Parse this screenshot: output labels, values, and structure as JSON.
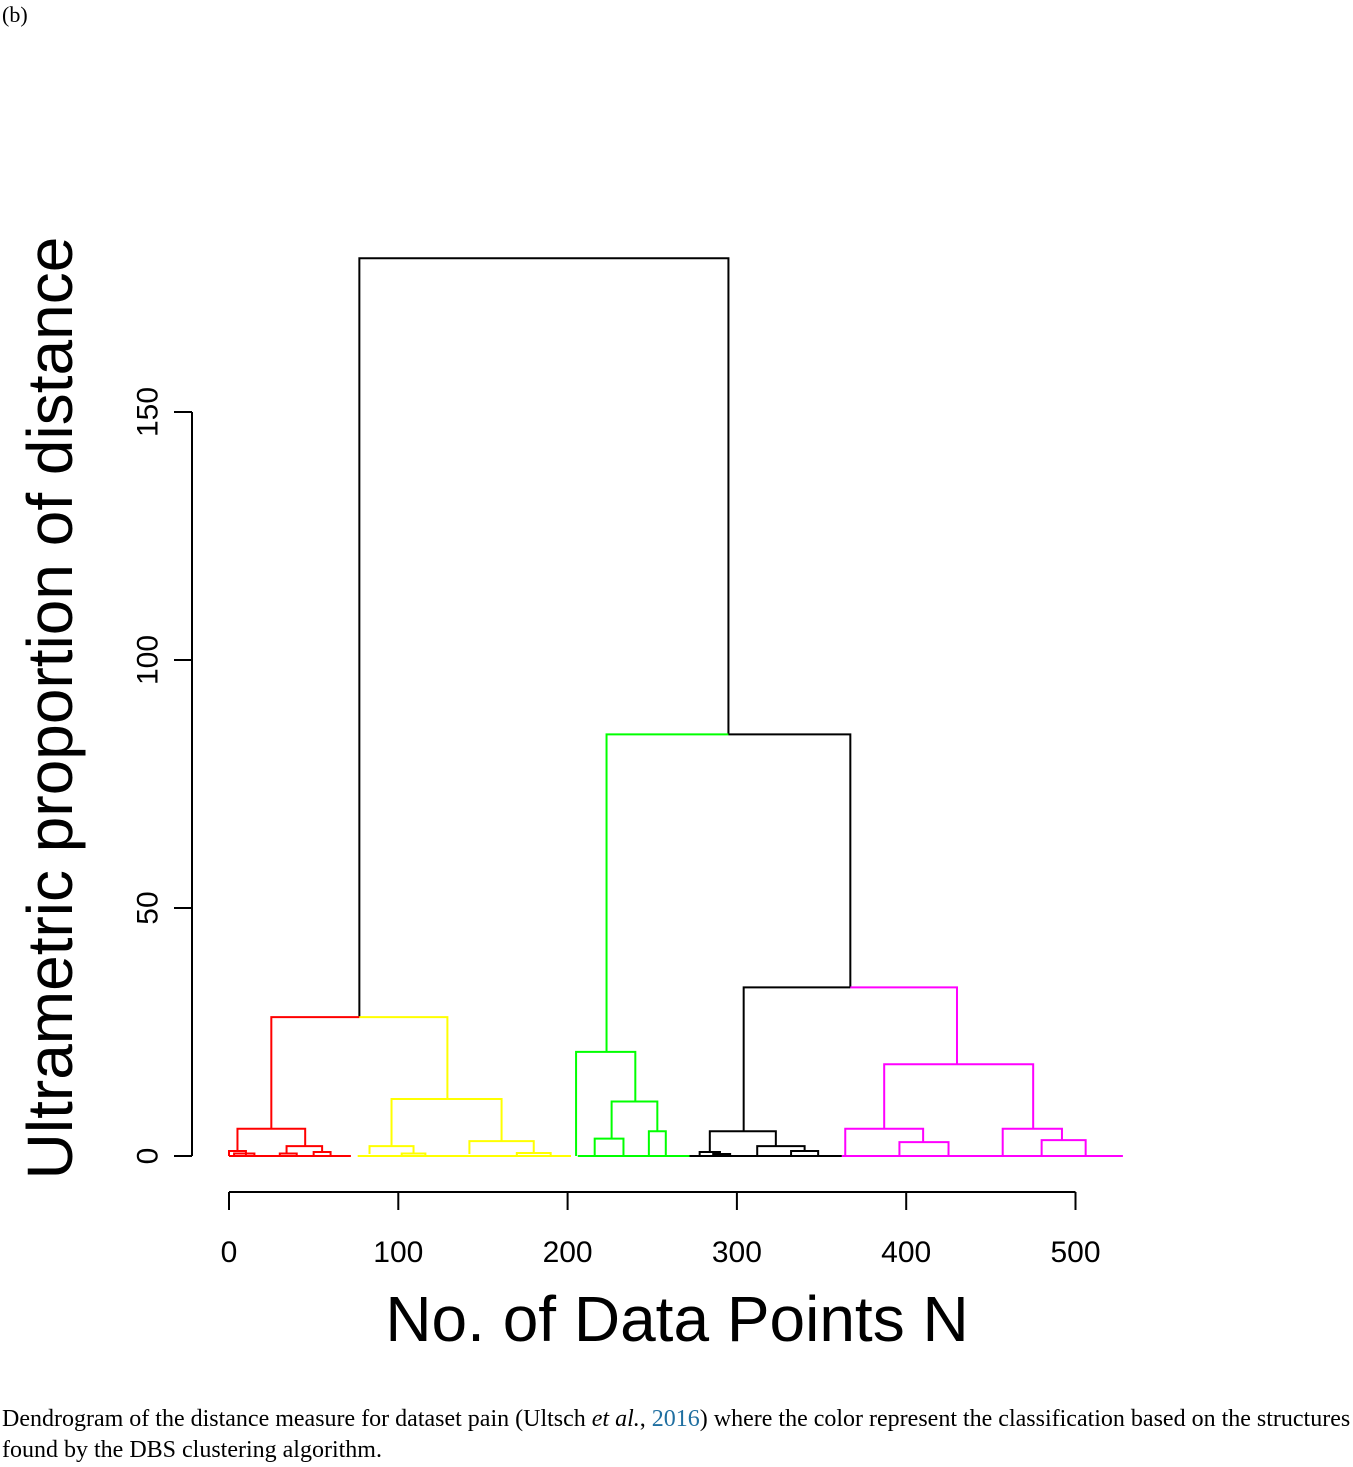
{
  "panel_label": "(b)",
  "chart_data": {
    "type": "dendrogram",
    "xlabel": "No. of Data Points N",
    "ylabel": "Ultrametric proportion of distance",
    "xlim": [
      0,
      530
    ],
    "ylim": [
      0,
      185
    ],
    "x_ticks": [
      0,
      100,
      200,
      300,
      400,
      500
    ],
    "y_ticks": [
      0,
      50,
      100,
      150
    ],
    "cluster_colors": {
      "red": "#ff0000",
      "yellow": "#ffff00",
      "green": "#00ff00",
      "black": "#000000",
      "magenta": "#ff00ff"
    },
    "segments": [
      {
        "color": "#000000",
        "x0": 77,
        "x1": 295,
        "y": 181,
        "yl": 28,
        "yr": 85
      },
      {
        "color": "#00ff00",
        "x0": 223,
        "x1": 295,
        "y": 85,
        "yl": 21,
        "yr": 85
      },
      {
        "color": "#000000",
        "x0": 295,
        "x1": 367,
        "y": 85,
        "yl": 85,
        "yr": 34
      },
      {
        "color": "#000000",
        "x0": 304,
        "x1": 367,
        "y": 34,
        "yl": 5,
        "yr": 34
      },
      {
        "color": "#ff00ff",
        "x0": 367,
        "x1": 430,
        "y": 34,
        "yl": 34,
        "yr": 18.5
      },
      {
        "color": "#ff0000",
        "x0": 25,
        "x1": 77,
        "y": 28,
        "yl": 5.5,
        "yr": 28
      },
      {
        "color": "#ffff00",
        "x0": 77,
        "x1": 129,
        "y": 28,
        "yl": 28,
        "yr": 11.5
      },
      {
        "color": "#ffff00",
        "x0": 96,
        "x1": 161,
        "y": 11.5,
        "yl": 2,
        "yr": 3
      },
      {
        "color": "#ff0000",
        "x0": 5,
        "x1": 45,
        "y": 5.5,
        "yl": 1,
        "yr": 2
      },
      {
        "color": "#ff0000",
        "x0": 34,
        "x1": 55,
        "y": 2,
        "yl": 0.5,
        "yr": 0.8
      },
      {
        "color": "#ff0000",
        "x0": 0,
        "x1": 10,
        "y": 1,
        "yl": 0,
        "yr": 0
      },
      {
        "color": "#ff0000",
        "x0": 3,
        "x1": 15,
        "y": 0.5,
        "yl": 0,
        "yr": 0
      },
      {
        "color": "#ff0000",
        "x0": 30,
        "x1": 40,
        "y": 0.5,
        "yl": 0,
        "yr": 0
      },
      {
        "color": "#ff0000",
        "x0": 50,
        "x1": 60,
        "y": 0.8,
        "yl": 0,
        "yr": 0
      },
      {
        "color": "#ffff00",
        "x0": 83,
        "x1": 109,
        "y": 2,
        "yl": 0.4,
        "yr": 0.5
      },
      {
        "color": "#ffff00",
        "x0": 142,
        "x1": 180,
        "y": 3,
        "yl": 0.4,
        "yr": 0.6
      },
      {
        "color": "#ffff00",
        "x0": 102,
        "x1": 116,
        "y": 0.5,
        "yl": 0,
        "yr": 0
      },
      {
        "color": "#ffff00",
        "x0": 170,
        "x1": 190,
        "y": 0.6,
        "yl": 0,
        "yr": 0
      },
      {
        "color": "#00ff00",
        "x0": 205,
        "x1": 240,
        "y": 21,
        "yl": 0,
        "yr": 11
      },
      {
        "color": "#00ff00",
        "x0": 226,
        "x1": 253,
        "y": 11,
        "yl": 3.5,
        "yr": 5
      },
      {
        "color": "#00ff00",
        "x0": 216,
        "x1": 233,
        "y": 3.5,
        "yl": 0,
        "yr": 0
      },
      {
        "color": "#00ff00",
        "x0": 248,
        "x1": 258,
        "y": 5,
        "yl": 0,
        "yr": 0
      },
      {
        "color": "#000000",
        "x0": 284,
        "x1": 323,
        "y": 5,
        "yl": 0.8,
        "yr": 2
      },
      {
        "color": "#000000",
        "x0": 312,
        "x1": 340,
        "y": 2,
        "yl": 0,
        "yr": 1
      },
      {
        "color": "#000000",
        "x0": 278,
        "x1": 290,
        "y": 0.8,
        "yl": 0,
        "yr": 0
      },
      {
        "color": "#000000",
        "x0": 286,
        "x1": 296,
        "y": 0.4,
        "yl": 0,
        "yr": 0
      },
      {
        "color": "#000000",
        "x0": 332,
        "x1": 348,
        "y": 1,
        "yl": 0,
        "yr": 0
      },
      {
        "color": "#ff00ff",
        "x0": 387,
        "x1": 475,
        "y": 18.5,
        "yl": 5.5,
        "yr": 5.5
      },
      {
        "color": "#ff00ff",
        "x0": 364,
        "x1": 410,
        "y": 5.5,
        "yl": 0,
        "yr": 2.8
      },
      {
        "color": "#ff00ff",
        "x0": 457,
        "x1": 492,
        "y": 5.5,
        "yl": 0,
        "yr": 3.2
      },
      {
        "color": "#ff00ff",
        "x0": 396,
        "x1": 425,
        "y": 2.8,
        "yl": 0,
        "yr": 0
      },
      {
        "color": "#ff00ff",
        "x0": 480,
        "x1": 506,
        "y": 3.2,
        "yl": 0,
        "yr": 0
      }
    ],
    "baselines": [
      {
        "color": "#ff0000",
        "x0": 0,
        "x1": 72
      },
      {
        "color": "#ffff00",
        "x0": 76,
        "x1": 202
      },
      {
        "color": "#00ff00",
        "x0": 206,
        "x1": 272
      },
      {
        "color": "#000000",
        "x0": 272,
        "x1": 362
      },
      {
        "color": "#ff00ff",
        "x0": 362,
        "x1": 528
      }
    ]
  },
  "caption": {
    "part1": "Dendrogram of the distance measure for dataset pain (Ultsch ",
    "etal": "et al.",
    "comma": ", ",
    "year": "2016",
    "part2": ") where the color represent the classification based on the structures found by the DBS clustering algorithm."
  }
}
